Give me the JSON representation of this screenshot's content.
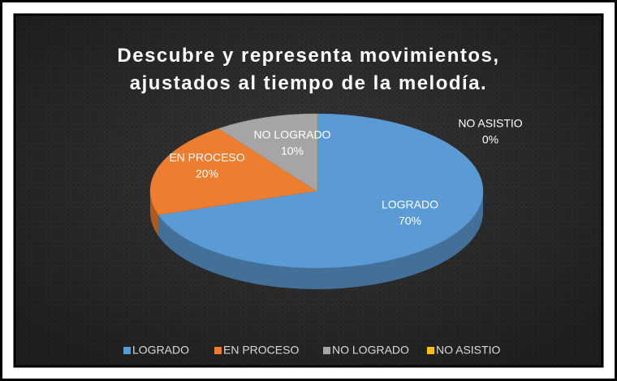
{
  "chart_data": {
    "type": "pie",
    "title": "Descubre y representa movimientos, ajustados al tiempo de la melodía.",
    "categories": [
      "LOGRADO",
      "EN PROCESO",
      "NO LOGRADO",
      "NO ASISTIO"
    ],
    "values": [
      70,
      20,
      10,
      0
    ],
    "value_labels": [
      "70%",
      "20%",
      "10%",
      "0%"
    ],
    "colors": [
      "#5b9bd5",
      "#ed7d31",
      "#a5a5a5",
      "#ffc000"
    ],
    "legend": "bottom"
  }
}
